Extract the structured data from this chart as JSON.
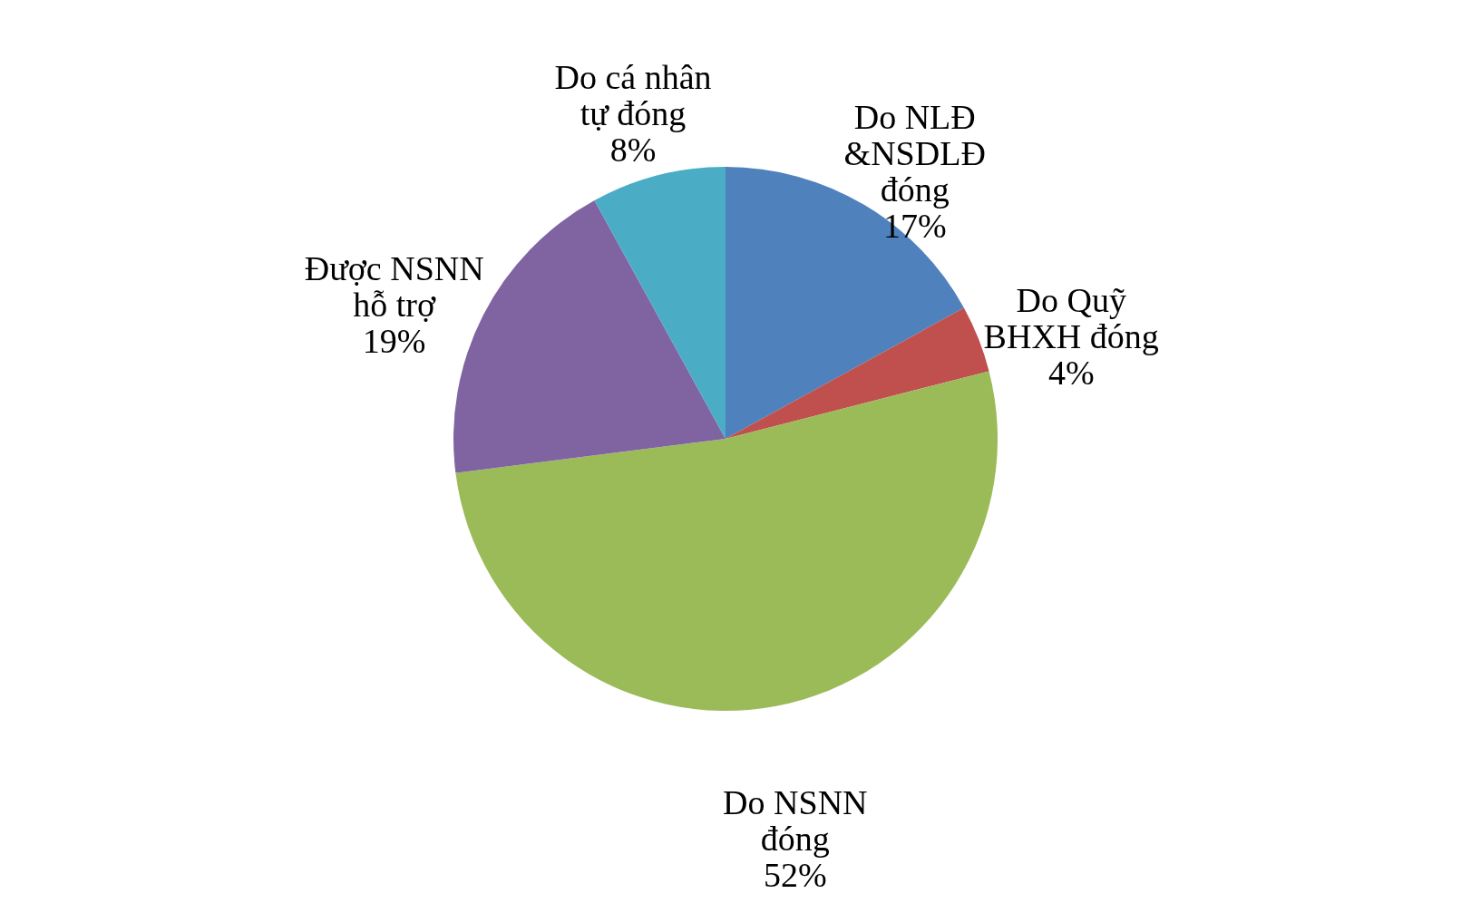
{
  "chart_data": {
    "type": "pie",
    "categories": [
      "Do NLĐ &NSDLĐ đóng",
      "Do Quỹ BHXH đóng",
      "Do NSNN đóng",
      "Được NSNN hỗ trợ",
      "Do cá nhân tự đóng"
    ],
    "values": [
      17,
      4,
      52,
      19,
      8
    ],
    "colors": [
      "#4f81bd",
      "#c0504d",
      "#9bbb59",
      "#8064a2",
      "#4bacc6"
    ],
    "value_labels": [
      "17%",
      "4%",
      "52%",
      "19%",
      "8%"
    ],
    "legend": false
  }
}
